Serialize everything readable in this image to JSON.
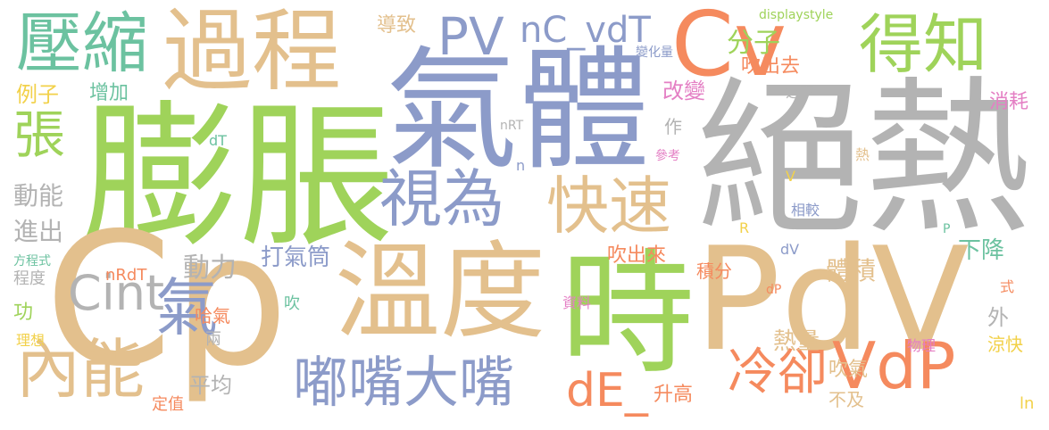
{
  "colors": {
    "green": "#9fd35a",
    "tan": "#e3c08d",
    "blue": "#8c9bc9",
    "gray": "#b3b3b3",
    "teal": "#6cc2a0",
    "orange": "#f58a5e",
    "pink": "#e47fc4",
    "yellow": "#f2d14a"
  },
  "words": {
    "w1": "絕熱",
    "w2": "膨脹",
    "w3": "氣體",
    "w4": "Cp",
    "w5": "時",
    "w6": "PdV",
    "w7": "溫度",
    "w8": "過程",
    "w9": "Cint",
    "w10": "Cv",
    "w11": "壓縮",
    "w12": "得知",
    "w13": "VdP",
    "w14": "嘟嘴大嘴",
    "w15": "內能",
    "w16": "視為",
    "w17": "快速",
    "w18": "冷卻",
    "w19": "PV",
    "w20": "nC_vdT",
    "w21": "dE_",
    "w22": "氣",
    "w23": "張",
    "w24": "分子",
    "w25": "打氣筒",
    "w26": "動能",
    "w27": "進出",
    "w28": "動力",
    "w29": "體積",
    "w30": "下降",
    "w31": "熱量",
    "w32": "吹氣",
    "w33": "改變",
    "w34": "例子",
    "w35": "增加",
    "w36": "導致",
    "w37": "吹出去",
    "w38": "消耗",
    "w39": "平均",
    "w40": "吹出來",
    "w41": "積分",
    "w42": "升高",
    "w43": "不及",
    "w44": "涼快",
    "w45": "哈氣",
    "w46": "功",
    "w47": "外",
    "w48": "程度",
    "w49": "方程式",
    "w50": "nRdT",
    "w51": "兩",
    "w52": "理想",
    "w53": "定值",
    "w54": "吹",
    "w55": "資料",
    "w56": "物理",
    "w57": "式",
    "w58": "ln",
    "w59": "dT",
    "w60": "nRT",
    "w61": "n",
    "w62": "作",
    "w63": "參考",
    "w64": "變化量",
    "w65": "之下",
    "w66": "displaystyle",
    "w67": "熱",
    "w68": "V",
    "w69": "相較",
    "w70": "R",
    "w71": "dV",
    "w72": "P",
    "w73": "dP"
  }
}
